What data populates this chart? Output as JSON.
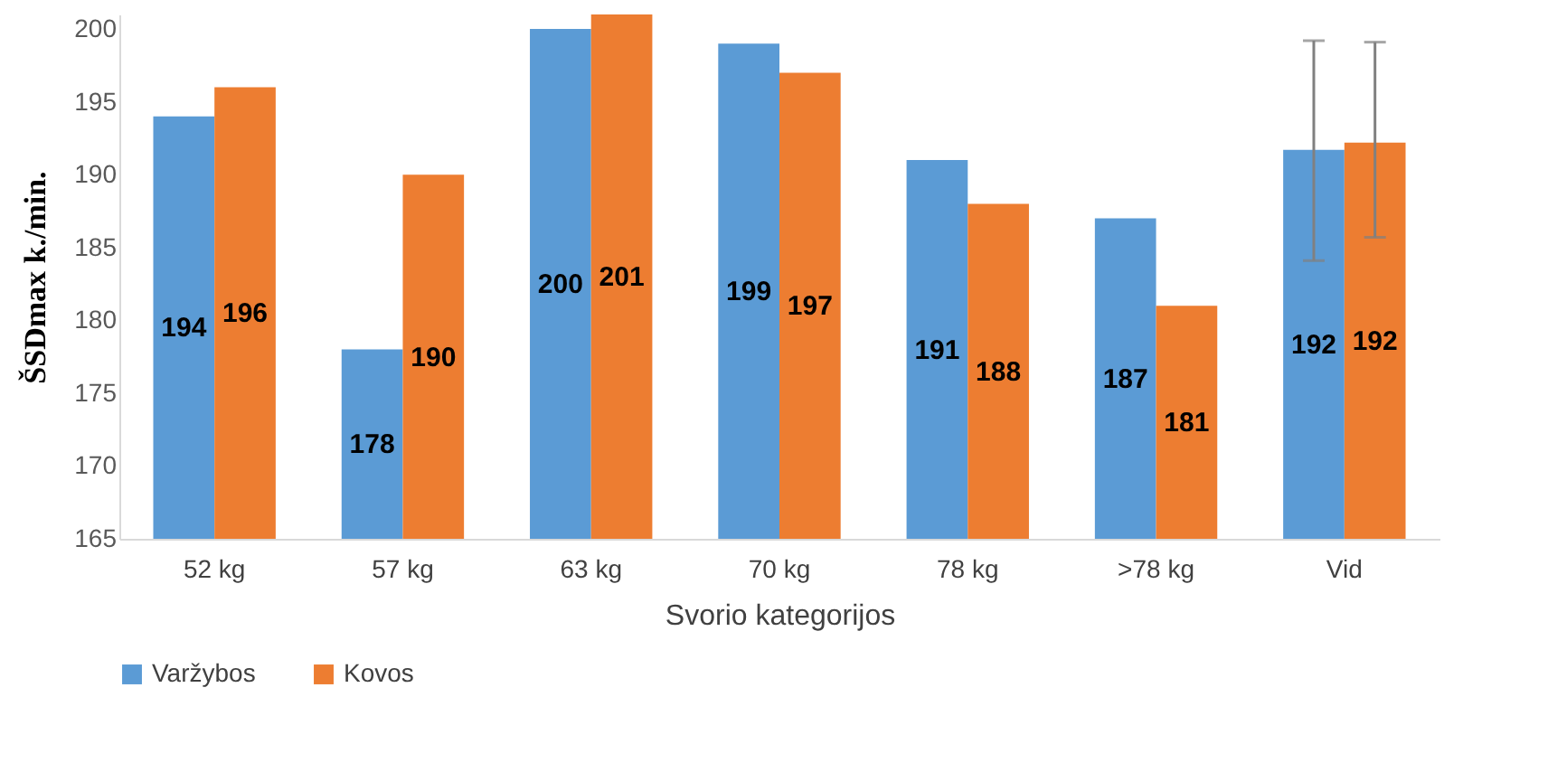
{
  "chart_data": {
    "type": "bar",
    "xlabel": "Svorio kategorijos",
    "ylabel": "ŠSDmax k./min.",
    "categories": [
      "52 kg",
      "57 kg",
      "63 kg",
      "70 kg",
      "78 kg",
      ">78 kg",
      "Vid"
    ],
    "series": [
      {
        "name": "Varžybos",
        "color": "#5b9bd5",
        "values": [
          194,
          178,
          200,
          199,
          191,
          187,
          191.7
        ],
        "value_labels": [
          "194",
          "178",
          "200",
          "199",
          "191",
          "187",
          "192"
        ],
        "errors": [
          null,
          null,
          null,
          null,
          null,
          null,
          [
            184.1,
            199.2
          ]
        ]
      },
      {
        "name": "Kovos",
        "color": "#ed7d31",
        "values": [
          196,
          190,
          201,
          197,
          188,
          181,
          192.2
        ],
        "value_labels": [
          "196",
          "190",
          "201",
          "197",
          "188",
          "181",
          "192"
        ],
        "errors": [
          null,
          null,
          null,
          null,
          null,
          null,
          [
            185.7,
            199.1
          ]
        ]
      }
    ],
    "ylim": [
      165,
      201
    ],
    "yticks": [
      165,
      170,
      175,
      180,
      185,
      190,
      195,
      200
    ],
    "grid": false,
    "legend": "bottom"
  }
}
